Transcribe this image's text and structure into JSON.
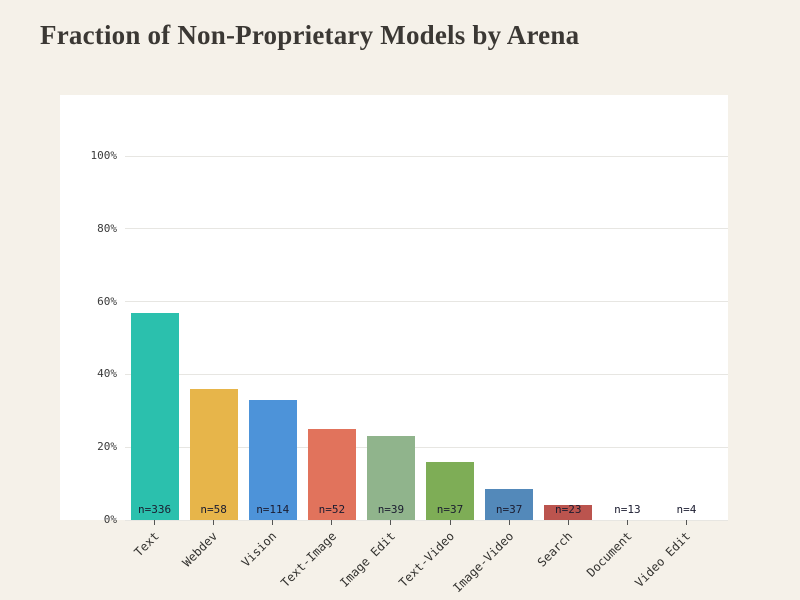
{
  "page": {
    "background_color": "#f5f1e9",
    "plot_background_color": "#ffffff",
    "gridline_color": "#e7e6e2"
  },
  "chart_data": {
    "type": "bar",
    "title": "Fraction of Non-Proprietary Models by Arena",
    "xlabel": "",
    "ylabel": "",
    "categories": [
      "Text",
      "Webdev",
      "Vision",
      "Text-Image",
      "Image Edit",
      "Text-Video",
      "Image-Video",
      "Search",
      "Document",
      "Video Edit"
    ],
    "values": [
      57,
      36,
      33,
      25,
      23,
      16,
      8.5,
      4,
      0,
      0
    ],
    "bar_labels": [
      "n=336",
      "n=58",
      "n=114",
      "n=52",
      "n=39",
      "n=37",
      "n=37",
      "n=23",
      "n=13",
      "n=4"
    ],
    "colors": [
      "#2bc0ad",
      "#e7b54a",
      "#4d93d9",
      "#e1735c",
      "#90b48c",
      "#7ead56",
      "#5389ba",
      "#bb544e",
      "#cccccc",
      "#cccccc"
    ],
    "yticks": [
      {
        "value": 0,
        "label": "0%"
      },
      {
        "value": 20,
        "label": "20%"
      },
      {
        "value": 40,
        "label": "40%"
      },
      {
        "value": 60,
        "label": "60%"
      },
      {
        "value": 80,
        "label": "80%"
      },
      {
        "value": 100,
        "label": "100%"
      }
    ],
    "ylim": [
      0,
      116
    ],
    "grid": true,
    "legend": "none"
  }
}
